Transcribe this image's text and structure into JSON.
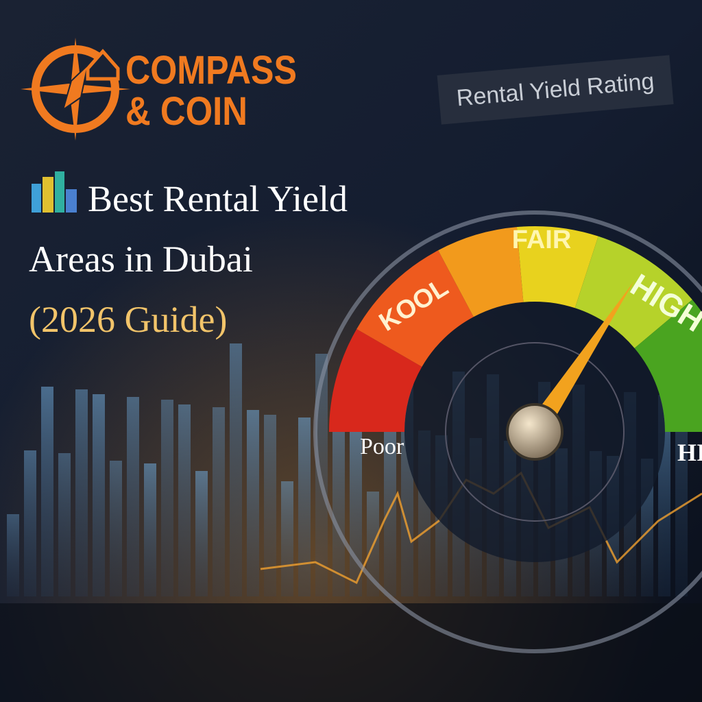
{
  "logo": {
    "line1": "COMPASS",
    "line2": "& COIN"
  },
  "headline": {
    "line1": "Best Rental Yield",
    "line2": "Areas in Dubai",
    "line3": "(2026 Guide)"
  },
  "gauge": {
    "title": "Rental Yield Rating",
    "zones": [
      "KOOL",
      "FAIR",
      "HIGH"
    ],
    "left_label": "Poor",
    "right_label": "HI"
  }
}
